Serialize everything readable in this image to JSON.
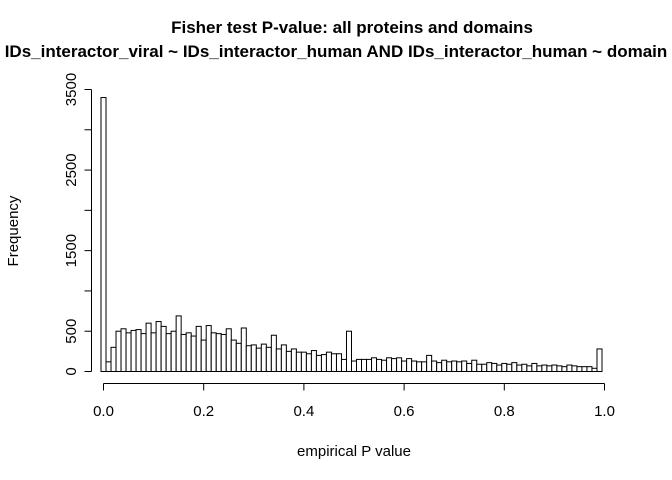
{
  "chart_data": {
    "type": "bar",
    "subtype": "histogram",
    "title": "Fisher test P-value: all proteins and domains",
    "subtitle": "IDs_interactor_viral ~ IDs_interactor_human AND IDs_interactor_human ~ domain",
    "xlabel": "empirical P value",
    "ylabel": "Frequency",
    "xlim": [
      -0.005,
      1.005
    ],
    "ylim": [
      0,
      3500
    ],
    "xticks": [
      "0.0",
      "0.2",
      "0.4",
      "0.6",
      "0.8",
      "1.0"
    ],
    "xtick_values": [
      0,
      0.2,
      0.4,
      0.6,
      0.8,
      1.0
    ],
    "yticks": [
      "0",
      "500",
      "1500",
      "2500",
      "3500"
    ],
    "ytick_values": [
      0,
      500,
      1500,
      2500,
      3500
    ],
    "bin_start": -0.005,
    "bin_width": 0.01,
    "values": [
      3400,
      120,
      300,
      500,
      530,
      480,
      510,
      520,
      470,
      600,
      480,
      620,
      560,
      470,
      500,
      690,
      460,
      480,
      440,
      560,
      390,
      570,
      480,
      470,
      460,
      530,
      390,
      350,
      540,
      320,
      330,
      290,
      340,
      300,
      450,
      280,
      330,
      250,
      280,
      240,
      240,
      220,
      260,
      200,
      210,
      240,
      220,
      220,
      150,
      500,
      130,
      150,
      150,
      150,
      170,
      150,
      140,
      170,
      160,
      170,
      130,
      160,
      130,
      120,
      120,
      200,
      130,
      110,
      140,
      120,
      130,
      120,
      130,
      100,
      140,
      90,
      90,
      110,
      100,
      80,
      100,
      90,
      110,
      80,
      90,
      70,
      100,
      70,
      80,
      70,
      80,
      70,
      60,
      80,
      70,
      60,
      60,
      60,
      40,
      280
    ]
  }
}
